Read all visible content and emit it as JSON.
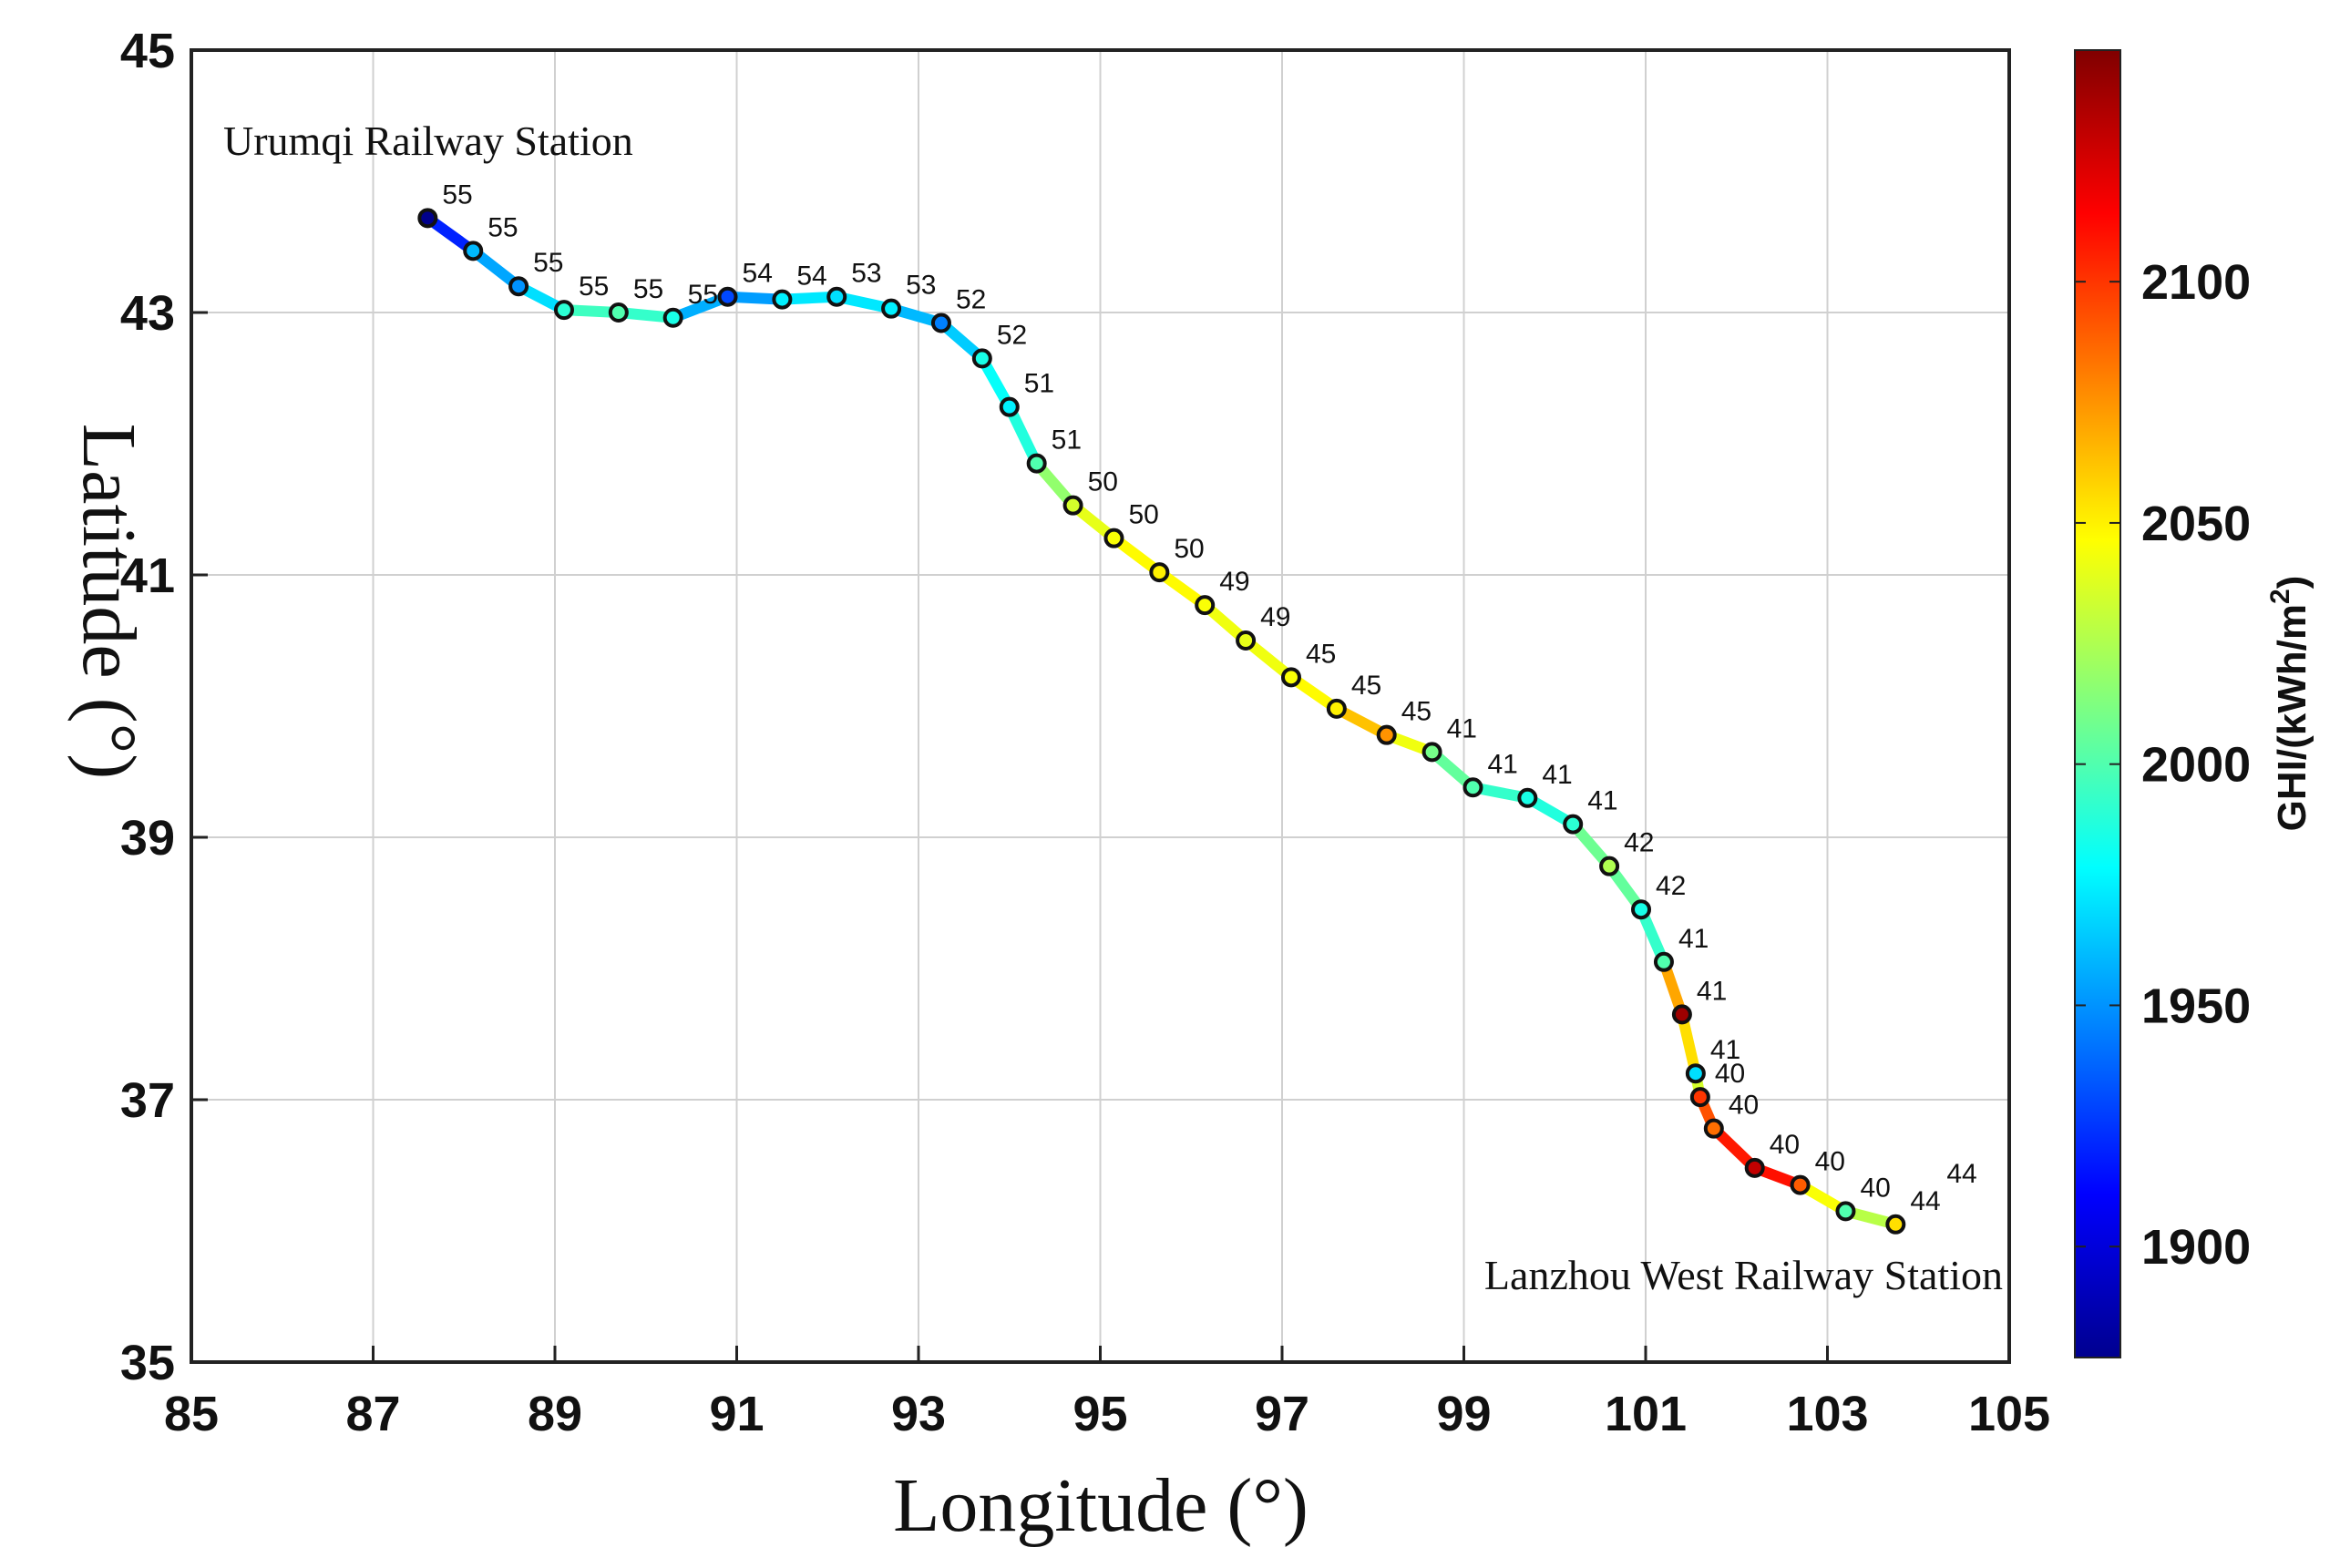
{
  "chart_data": {
    "type": "scatter",
    "title": "",
    "xlabel": "Longitude (°)",
    "ylabel": "Latitude (°)",
    "xlim": [
      85,
      105
    ],
    "ylim": [
      35,
      45
    ],
    "x_ticks": [
      85,
      87,
      89,
      91,
      93,
      95,
      97,
      99,
      101,
      103,
      105
    ],
    "y_ticks": [
      35,
      37,
      39,
      41,
      43,
      45
    ],
    "grid": true,
    "colorbar": {
      "label": "GHI/(kWh/m",
      "label_superscript": "2",
      "label_suffix": ")",
      "min": 1877,
      "max": 2148,
      "ticks": [
        1900,
        1950,
        2000,
        2050,
        2100
      ],
      "colormap": "jet"
    },
    "annotations": {
      "start": "Urumqi Railway Station",
      "end": "Lanzhou West Railway Station"
    },
    "points": [
      {
        "lon": 87.6,
        "lat": 43.72,
        "ghi": 1880,
        "label": "55"
      },
      {
        "lon": 88.1,
        "lat": 43.47,
        "ghi": 1960,
        "label": "55"
      },
      {
        "lon": 88.6,
        "lat": 43.2,
        "ghi": 1950,
        "label": "55"
      },
      {
        "lon": 89.1,
        "lat": 43.02,
        "ghi": 1990,
        "label": "55"
      },
      {
        "lon": 89.7,
        "lat": 43.0,
        "ghi": 2000,
        "label": "55"
      },
      {
        "lon": 90.3,
        "lat": 42.96,
        "ghi": 1985,
        "label": "55"
      },
      {
        "lon": 90.9,
        "lat": 43.12,
        "ghi": 1930,
        "label": "54"
      },
      {
        "lon": 91.5,
        "lat": 43.1,
        "ghi": 1975,
        "label": "54"
      },
      {
        "lon": 92.1,
        "lat": 43.12,
        "ghi": 1970,
        "label": "53"
      },
      {
        "lon": 92.7,
        "lat": 43.03,
        "ghi": 1975,
        "label": "53"
      },
      {
        "lon": 93.25,
        "lat": 42.92,
        "ghi": 1945,
        "label": "52"
      },
      {
        "lon": 93.7,
        "lat": 42.65,
        "ghi": 1985,
        "label": "52"
      },
      {
        "lon": 94.0,
        "lat": 42.28,
        "ghi": 1975,
        "label": "51"
      },
      {
        "lon": 94.3,
        "lat": 41.85,
        "ghi": 2000,
        "label": "51"
      },
      {
        "lon": 94.7,
        "lat": 41.53,
        "ghi": 2035,
        "label": "50"
      },
      {
        "lon": 95.15,
        "lat": 41.28,
        "ghi": 2045,
        "label": "50"
      },
      {
        "lon": 95.65,
        "lat": 41.02,
        "ghi": 2050,
        "label": "50"
      },
      {
        "lon": 96.15,
        "lat": 40.77,
        "ghi": 2045,
        "label": "49"
      },
      {
        "lon": 96.6,
        "lat": 40.5,
        "ghi": 2040,
        "label": "49"
      },
      {
        "lon": 97.1,
        "lat": 40.22,
        "ghi": 2045,
        "label": "45"
      },
      {
        "lon": 97.6,
        "lat": 39.98,
        "ghi": 2050,
        "label": "45"
      },
      {
        "lon": 98.15,
        "lat": 39.78,
        "ghi": 2075,
        "label": "45"
      },
      {
        "lon": 98.65,
        "lat": 39.65,
        "ghi": 2010,
        "label": "41"
      },
      {
        "lon": 99.1,
        "lat": 39.38,
        "ghi": 2000,
        "label": "41"
      },
      {
        "lon": 99.7,
        "lat": 39.3,
        "ghi": 1985,
        "label": "41"
      },
      {
        "lon": 100.2,
        "lat": 39.1,
        "ghi": 1990,
        "label": "41"
      },
      {
        "lon": 100.6,
        "lat": 38.78,
        "ghi": 2025,
        "label": "42"
      },
      {
        "lon": 100.95,
        "lat": 38.45,
        "ghi": 1985,
        "label": "42"
      },
      {
        "lon": 101.2,
        "lat": 38.05,
        "ghi": 2000,
        "label": "41"
      },
      {
        "lon": 101.4,
        "lat": 37.65,
        "ghi": 2140,
        "label": "41"
      },
      {
        "lon": 101.55,
        "lat": 37.2,
        "ghi": 1970,
        "label": "41"
      },
      {
        "lon": 101.6,
        "lat": 37.02,
        "ghi": 2100,
        "label": "40"
      },
      {
        "lon": 101.75,
        "lat": 36.78,
        "ghi": 2085,
        "label": "40"
      },
      {
        "lon": 102.2,
        "lat": 36.48,
        "ghi": 2130,
        "label": "40"
      },
      {
        "lon": 102.7,
        "lat": 36.35,
        "ghi": 2090,
        "label": "40"
      },
      {
        "lon": 103.2,
        "lat": 36.15,
        "ghi": 2000,
        "label": "40"
      },
      {
        "lon": 103.75,
        "lat": 36.05,
        "ghi": 2055,
        "label": "44"
      },
      {
        "lon": null,
        "lat": null,
        "ghi": null,
        "label": "44"
      }
    ]
  }
}
